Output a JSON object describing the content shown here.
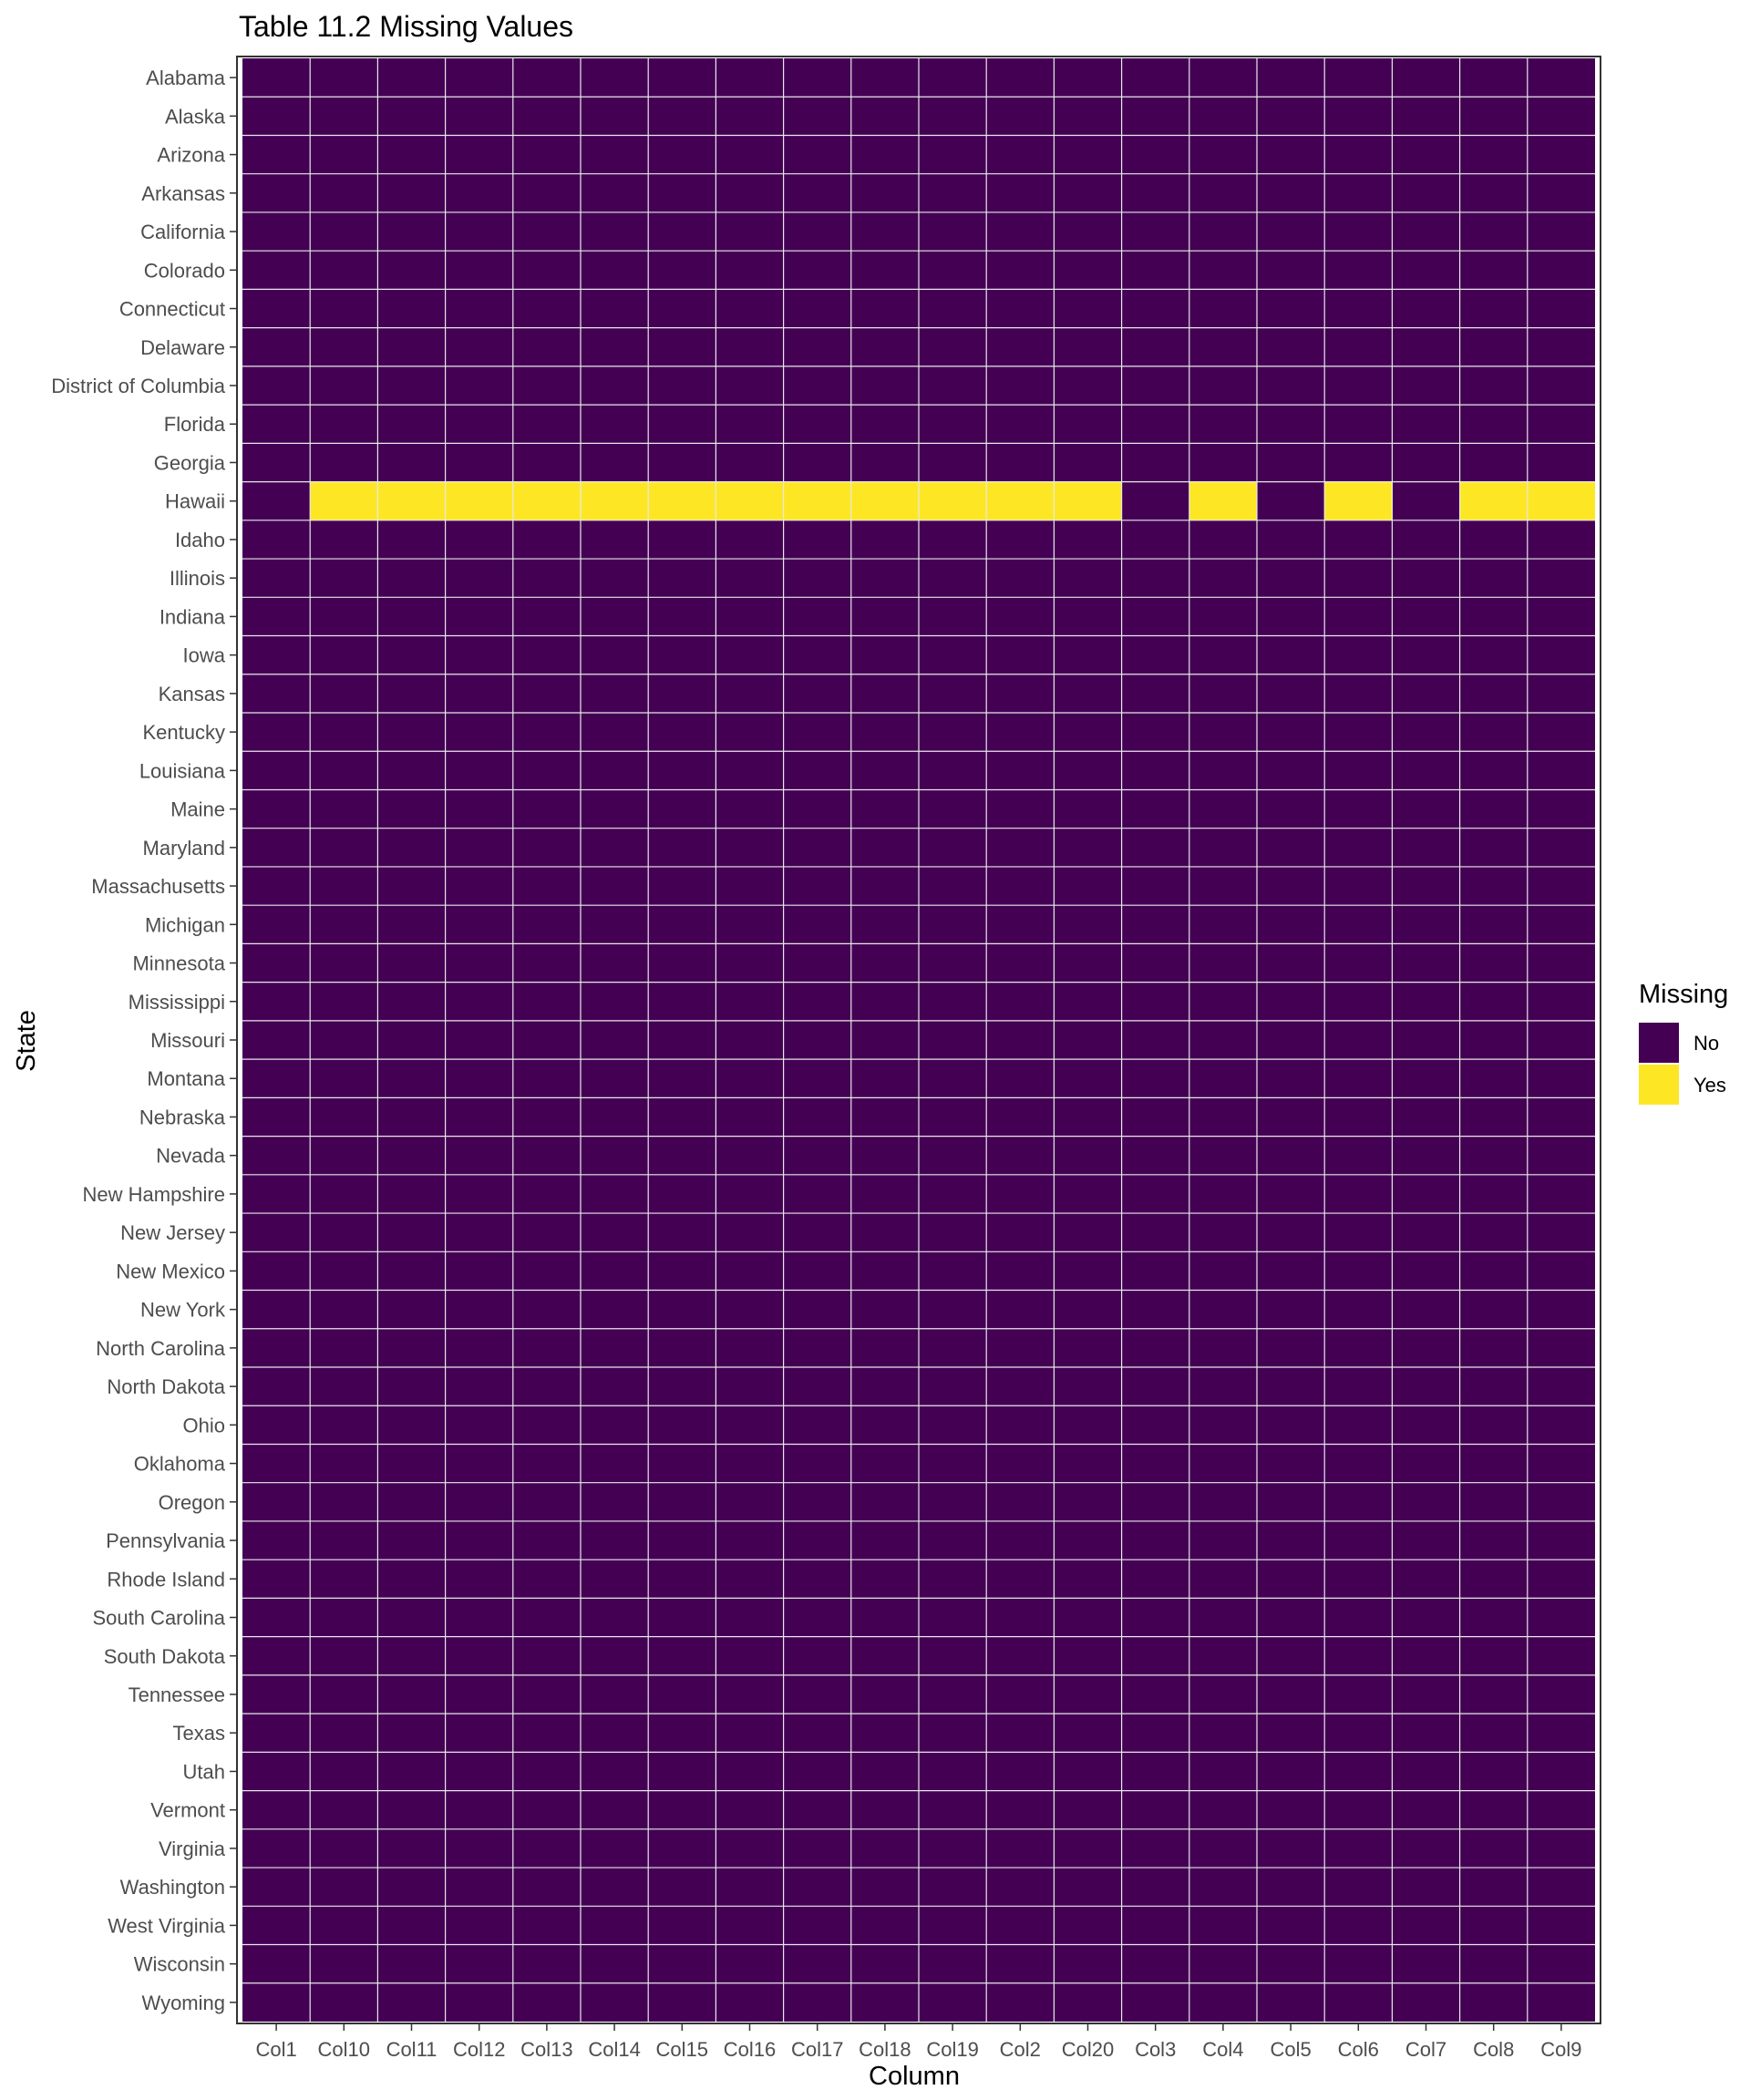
{
  "chart_data": {
    "type": "heatmap",
    "title": "Table 11.2 Missing Values",
    "xlabel": "Column",
    "ylabel": "State",
    "x_categories": [
      "Col1",
      "Col10",
      "Col11",
      "Col12",
      "Col13",
      "Col14",
      "Col15",
      "Col16",
      "Col17",
      "Col18",
      "Col19",
      "Col2",
      "Col20",
      "Col3",
      "Col4",
      "Col5",
      "Col6",
      "Col7",
      "Col8",
      "Col9"
    ],
    "y_categories": [
      "Alabama",
      "Alaska",
      "Arizona",
      "Arkansas",
      "California",
      "Colorado",
      "Connecticut",
      "Delaware",
      "District of Columbia",
      "Florida",
      "Georgia",
      "Hawaii",
      "Idaho",
      "Illinois",
      "Indiana",
      "Iowa",
      "Kansas",
      "Kentucky",
      "Louisiana",
      "Maine",
      "Maryland",
      "Massachusetts",
      "Michigan",
      "Minnesota",
      "Mississippi",
      "Missouri",
      "Montana",
      "Nebraska",
      "Nevada",
      "New Hampshire",
      "New Jersey",
      "New Mexico",
      "New York",
      "North Carolina",
      "North Dakota",
      "Ohio",
      "Oklahoma",
      "Oregon",
      "Pennsylvania",
      "Rhode Island",
      "South Carolina",
      "South Dakota",
      "Tennessee",
      "Texas",
      "Utah",
      "Vermont",
      "Virginia",
      "Washington",
      "West Virginia",
      "Wisconsin",
      "Wyoming"
    ],
    "default_value": "No",
    "missing_cells": [
      {
        "state": "Hawaii",
        "columns": [
          "Col10",
          "Col11",
          "Col12",
          "Col13",
          "Col14",
          "Col15",
          "Col16",
          "Col17",
          "Col18",
          "Col19",
          "Col2",
          "Col20",
          "Col4",
          "Col6",
          "Col8",
          "Col9"
        ]
      }
    ],
    "legend": {
      "title": "Missing",
      "position": "right",
      "items": [
        {
          "label": "No",
          "color": "#440154"
        },
        {
          "label": "Yes",
          "color": "#FDE725"
        }
      ]
    },
    "grid_line_color": "#e8e8e8",
    "panel_border_color": "#333333"
  }
}
